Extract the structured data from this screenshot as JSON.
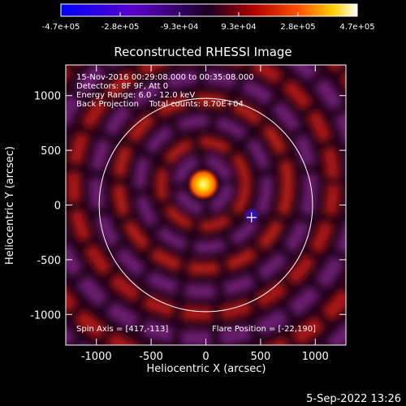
{
  "colorbar": {
    "tick_labels": [
      "-4.7e+05",
      "-2.8e+05",
      "-9.3e+04",
      "9.3e+04",
      "2.8e+05",
      "4.7e+05"
    ]
  },
  "image": {
    "title": "Reconstructed RHESSI Image",
    "info_lines": [
      "15-Nov-2016 00:29:08.000 to 00:35:08.000",
      "Detectors: 8F 9F, Att 0",
      "Energy Range: 6.0 - 12.0 keV",
      "Back Projection    Total counts: 8.70E+04"
    ],
    "spin_axis": "Spin Axis = [417,-113]",
    "flare_position": "Flare Position = [-22,190]",
    "timestamp": "5-Sep-2022 13:26"
  },
  "axes": {
    "xlabel": "Heliocentric X (arcsec)",
    "ylabel": "Heliocentric Y (arcsec)",
    "x_ticks": [
      -1000,
      -500,
      0,
      500,
      1000
    ],
    "y_ticks": [
      1000,
      500,
      0,
      -500,
      -1000
    ],
    "x_range": [
      -1280,
      1280
    ],
    "y_range": [
      -1280,
      1280
    ]
  },
  "solar_limb": {
    "center": [
      0,
      0
    ],
    "radius_arcsec": 975
  },
  "sources": {
    "bright": {
      "x": -22,
      "y": 190
    },
    "dark": {
      "x": 420,
      "y": -95
    },
    "marker": {
      "x": 417,
      "y": -113
    }
  }
}
